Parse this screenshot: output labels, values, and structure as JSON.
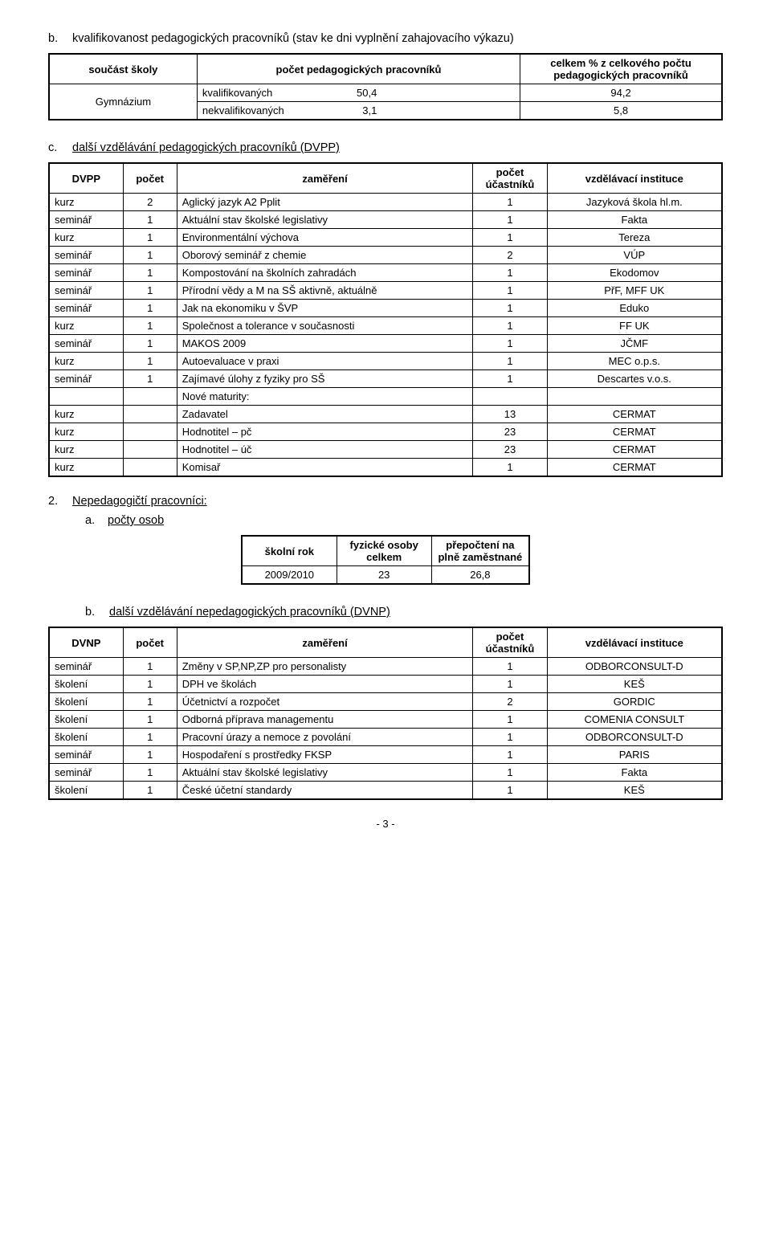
{
  "section_b": {
    "letter": "b.",
    "title": "kvalifikovanost pedagogických pracovníků (stav ke dni vyplnění zahajovacího výkazu)"
  },
  "table1": {
    "headers": [
      "součást školy",
      "počet pedagogických pracovníků",
      "celkem % z celkového počtu pedagogických pracovníků"
    ],
    "rowspan_label": "Gymnázium",
    "rows": [
      [
        "kvalifikovaných",
        "50,4",
        "94,2"
      ],
      [
        "nekvalifikovaných",
        "3,1",
        "5,8"
      ]
    ]
  },
  "section_c": {
    "letter": "c.",
    "title": "další vzdělávání pedagogických pracovníků (DVPP)"
  },
  "table2": {
    "headers": [
      "DVPP",
      "počet",
      "zaměření",
      "počet účastníků",
      "vzdělávací instituce"
    ],
    "rows": [
      [
        "kurz",
        "2",
        "Aglický jazyk A2 Pplit",
        "1",
        "Jazyková škola hl.m."
      ],
      [
        "seminář",
        "1",
        "Aktuální stav školské legislativy",
        "1",
        "Fakta"
      ],
      [
        "kurz",
        "1",
        "Environmentální výchova",
        "1",
        "Tereza"
      ],
      [
        "seminář",
        "1",
        "Oborový seminář z chemie",
        "2",
        "VÚP"
      ],
      [
        "seminář",
        "1",
        "Kompostování na školních zahradách",
        "1",
        "Ekodomov"
      ],
      [
        "seminář",
        "1",
        "Přírodní vědy a M na SŠ aktivně, aktuálně",
        "1",
        "PřF, MFF UK"
      ],
      [
        "seminář",
        "1",
        "Jak na ekonomiku v ŠVP",
        "1",
        "Eduko"
      ],
      [
        "kurz",
        "1",
        "Společnost a tolerance v současnosti",
        "1",
        "FF UK"
      ],
      [
        "seminář",
        "1",
        "MAKOS 2009",
        "1",
        "JČMF"
      ],
      [
        "kurz",
        "1",
        "Autoevaluace v praxi",
        "1",
        "MEC o.p.s."
      ],
      [
        "seminář",
        "1",
        "Zajímavé úlohy z fyziky pro SŠ",
        "1",
        "Descartes v.o.s."
      ],
      [
        "",
        "",
        "Nové maturity:",
        "",
        ""
      ],
      [
        "kurz",
        "",
        "Zadavatel",
        "13",
        "CERMAT"
      ],
      [
        "kurz",
        "",
        "Hodnotitel – pč",
        "23",
        "CERMAT"
      ],
      [
        "kurz",
        "",
        "Hodnotitel – úč",
        "23",
        "CERMAT"
      ],
      [
        "kurz",
        "",
        "Komisař",
        "1",
        "CERMAT"
      ]
    ]
  },
  "section2": {
    "num": "2.",
    "title": "Nepedagogičtí pracovníci:",
    "sub_letter": "a.",
    "sub_title": "počty osob"
  },
  "table3": {
    "headers": [
      "školní rok",
      "fyzické osoby celkem",
      "přepočtení na plně zaměstnané"
    ],
    "row": [
      "2009/2010",
      "23",
      "26,8"
    ]
  },
  "section_b2": {
    "letter": "b.",
    "title": "další vzdělávání nepedagogických pracovníků (DVNP)"
  },
  "table4": {
    "headers": [
      "DVNP",
      "počet",
      "zaměření",
      "počet účastníků",
      "vzdělávací instituce"
    ],
    "rows": [
      [
        "seminář",
        "1",
        "Změny v SP,NP,ZP pro personalisty",
        "1",
        "ODBORCONSULT-D"
      ],
      [
        "školení",
        "1",
        "DPH ve školách",
        "1",
        "KEŠ"
      ],
      [
        "školení",
        "1",
        "Účetnictví a rozpočet",
        "2",
        "GORDIC"
      ],
      [
        "školení",
        "1",
        "Odborná příprava managementu",
        "1",
        "COMENIA CONSULT"
      ],
      [
        "školení",
        "1",
        "Pracovní úrazy a nemoce z povolání",
        "1",
        "ODBORCONSULT-D"
      ],
      [
        "seminář",
        "1",
        "Hospodaření s prostředky FKSP",
        "1",
        "PARIS"
      ],
      [
        "seminář",
        "1",
        "Aktuální stav školské legislativy",
        "1",
        "Fakta"
      ],
      [
        "školení",
        "1",
        "České účetní standardy",
        "1",
        "KEŠ"
      ]
    ]
  },
  "page_footer": "- 3 -"
}
